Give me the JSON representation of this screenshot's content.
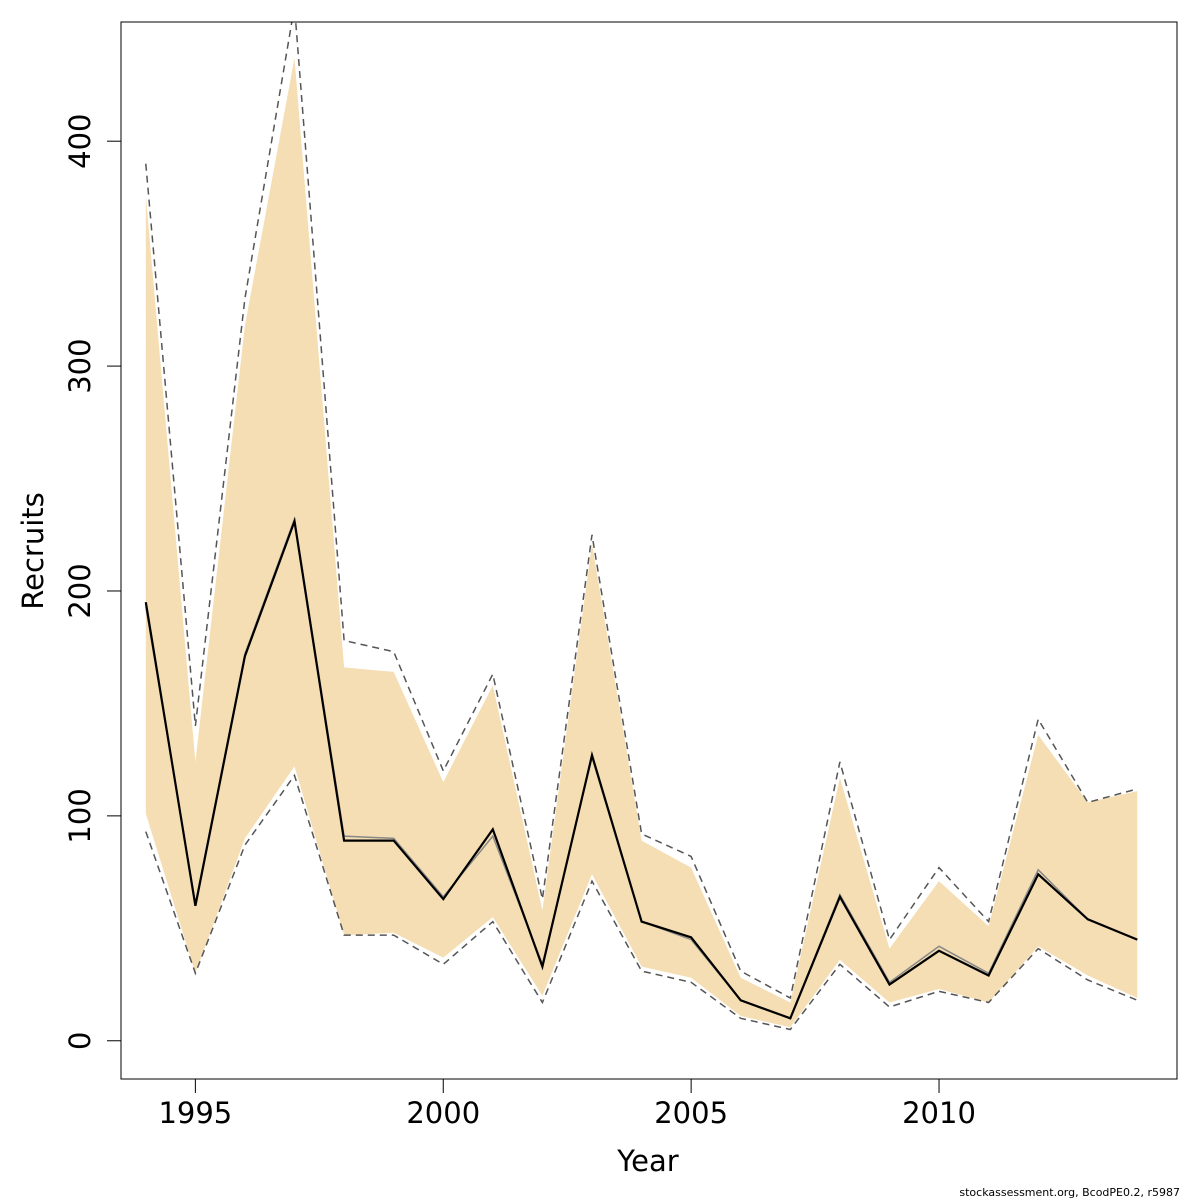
{
  "chart_data": {
    "type": "line",
    "title": "",
    "xlabel": "Year",
    "ylabel": "Recruits",
    "xlim": [
      1993.5,
      2014.8
    ],
    "ylim": [
      -17,
      453
    ],
    "x_ticks": [
      1995,
      2000,
      2005,
      2010
    ],
    "y_ticks": [
      0,
      100,
      200,
      300,
      400
    ],
    "grid": false,
    "legend": "none",
    "x": [
      1994,
      1995,
      1996,
      1997,
      1998,
      1999,
      2000,
      2001,
      2002,
      2003,
      2004,
      2005,
      2006,
      2007,
      2008,
      2009,
      2010,
      2011,
      2012,
      2013,
      2014
    ],
    "series": [
      {
        "role": "estimate",
        "color": "#000000",
        "values": [
          195,
          60,
          171,
          231,
          89,
          89,
          63,
          94,
          33,
          127,
          53,
          46,
          18,
          10,
          64,
          25,
          40,
          29,
          74,
          54,
          45
        ]
      },
      {
        "role": "estimate-secondary",
        "color": "#888888",
        "values": [
          193,
          61,
          172,
          232,
          91,
          90,
          64,
          91,
          34,
          126,
          53,
          45,
          18,
          10,
          65,
          26,
          42,
          30,
          76,
          54,
          45
        ]
      }
    ],
    "band": {
      "color": "#f5deb3",
      "lower": [
        101,
        30,
        90,
        122,
        47,
        48,
        37,
        55,
        20,
        74,
        33,
        28,
        11,
        6,
        36,
        17,
        23,
        17,
        42,
        29,
        19
      ],
      "upper": [
        376,
        124,
        318,
        437,
        166,
        164,
        115,
        158,
        58,
        221,
        89,
        77,
        28,
        17,
        117,
        41,
        71,
        51,
        136,
        106,
        111
      ]
    },
    "interval": {
      "color": "#555555",
      "style": "dashed",
      "lower": [
        93,
        30,
        87,
        118,
        47,
        47,
        34,
        53,
        17,
        71,
        31,
        26,
        10,
        5,
        34,
        15,
        22,
        17,
        41,
        27,
        18
      ],
      "upper": [
        390,
        140,
        330,
        460,
        178,
        173,
        120,
        163,
        63,
        225,
        92,
        82,
        31,
        19,
        124,
        45,
        77,
        53,
        143,
        106,
        112
      ]
    }
  },
  "footer": {
    "text": "stockassessment.org, BcodPE0.2, r5987"
  }
}
